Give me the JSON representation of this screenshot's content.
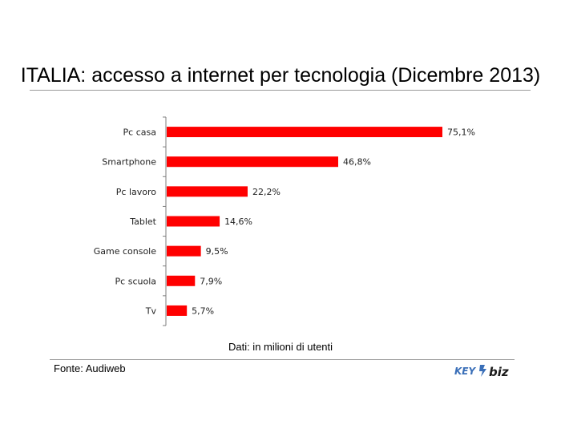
{
  "chart_data": {
    "type": "bar",
    "orientation": "horizontal",
    "title": "ITALIA: accesso a internet per tecnologia (Dicembre 2013)",
    "categories": [
      "Pc casa",
      "Smartphone",
      "Pc lavoro",
      "Tablet",
      "Game console",
      "Pc scuola",
      "Tv"
    ],
    "values": [
      75.1,
      46.8,
      22.2,
      14.6,
      9.5,
      7.9,
      5.7
    ],
    "value_labels": [
      "75,1%",
      "46,8%",
      "22,2%",
      "14,6%",
      "9,5%",
      "7,9%",
      "5,7%"
    ],
    "xlim": [
      0,
      75.1
    ],
    "grid": false,
    "bar_color": "#ff0000",
    "note": "Dati: in milioni di utenti",
    "source": "Fonte: Audiweb"
  },
  "logo": {
    "text_left": "KEY",
    "text_right": "biz",
    "colors": [
      "#3a6fb8",
      "#1a1a1a"
    ]
  }
}
